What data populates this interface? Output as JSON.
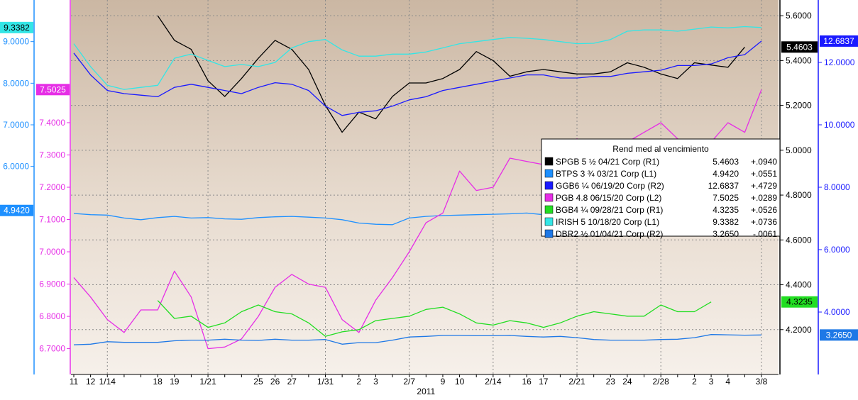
{
  "chart_data": {
    "type": "line",
    "x_year_label": "2011",
    "x_tick_labels": [
      "11",
      "12",
      "1/14",
      "18",
      "19",
      "1/21",
      "25",
      "26",
      "27",
      "1/31",
      "2",
      "3",
      "2/7",
      "9",
      "10",
      "2/14",
      "16",
      "17",
      "2/21",
      "23",
      "24",
      "2/28",
      "2",
      "3",
      "4",
      "3/8"
    ],
    "x_tick_index": [
      0,
      1,
      2,
      5,
      6,
      8,
      11,
      12,
      13,
      15,
      17,
      18,
      20,
      22,
      23,
      25,
      27,
      28,
      30,
      32,
      33,
      35,
      37,
      38,
      39,
      41
    ],
    "n_points": 42,
    "axes": {
      "L1": {
        "min": 1.0,
        "max": 10.0,
        "ticks": [
          6.0,
          7.0,
          8.0,
          9.0
        ],
        "labels": [
          "6.0000",
          "7.0000",
          "8.0000",
          "9.0000"
        ],
        "color": "#1e90ff"
      },
      "L2": {
        "min": 6.62,
        "max": 7.78,
        "ticks": [
          6.7,
          6.8,
          6.9,
          7.0,
          7.1,
          7.2,
          7.3,
          7.4
        ],
        "labels": [
          "6.7000",
          "6.8000",
          "6.9000",
          "7.0000",
          "7.1000",
          "7.2000",
          "7.3000",
          "7.4000"
        ],
        "color": "#e62ee6"
      },
      "R1": {
        "min": 4.0,
        "max": 5.67,
        "ticks": [
          4.2,
          4.4,
          4.6,
          4.8,
          5.0,
          5.2,
          5.4,
          5.6
        ],
        "labels": [
          "4.2000",
          "4.4000",
          "4.6000",
          "4.8000",
          "5.0000",
          "5.2000",
          "5.4000",
          "5.6000"
        ],
        "color": "#000000"
      },
      "R2": {
        "min": 2.0,
        "max": 14.0,
        "ticks": [
          4.0,
          6.0,
          8.0,
          10.0,
          12.0
        ],
        "labels": [
          "4.0000",
          "6.0000",
          "8.0000",
          "10.0000",
          "12.0000"
        ],
        "color": "#1a1aff"
      }
    },
    "series": [
      {
        "name": "SPGB 5 ½  04/21 Corp  (R1)",
        "axis": "R1",
        "color": "#000000",
        "last": "5.4603",
        "change": "+.0940",
        "start": 5,
        "values": [
          5.6,
          5.49,
          5.45,
          5.31,
          5.24,
          5.32,
          5.41,
          5.49,
          5.45,
          5.36,
          5.2,
          5.08,
          5.17,
          5.14,
          5.24,
          5.3,
          5.3,
          5.32,
          5.36,
          5.44,
          5.4,
          5.33,
          5.35,
          5.36,
          5.35,
          5.34,
          5.34,
          5.35,
          5.39,
          5.37,
          5.34,
          5.32,
          5.39,
          5.38,
          5.37,
          5.46
        ]
      },
      {
        "name": "BTPS 3 ¾  03/21 Corp  (L1)",
        "axis": "L1",
        "color": "#1e90ff",
        "last": "4.9420",
        "change": "+.0551",
        "start": 0,
        "values": [
          4.87,
          4.84,
          4.83,
          4.76,
          4.72,
          4.77,
          4.8,
          4.76,
          4.77,
          4.74,
          4.73,
          4.77,
          4.79,
          4.8,
          4.78,
          4.76,
          4.72,
          4.64,
          4.61,
          4.6,
          4.76,
          4.8,
          4.82,
          4.83,
          4.84,
          4.85,
          4.86,
          4.88,
          4.84,
          4.82,
          4.86,
          4.87,
          4.88,
          4.89,
          4.9,
          4.89,
          4.87,
          4.88,
          4.92,
          4.91,
          4.92,
          4.942
        ]
      },
      {
        "name": "GGB6 ¼  06/19/20 Corp  (R2) 12.6837",
        "axis": "R2",
        "color": "#1a1aff",
        "last": "12.6837",
        "change": "+.4729",
        "start": 0,
        "values": [
          12.3,
          11.6,
          11.1,
          11.0,
          10.95,
          10.9,
          11.2,
          11.3,
          11.2,
          11.1,
          11.0,
          11.2,
          11.35,
          11.3,
          11.1,
          10.6,
          10.3,
          10.4,
          10.45,
          10.6,
          10.8,
          10.9,
          11.1,
          11.2,
          11.3,
          11.4,
          11.5,
          11.6,
          11.6,
          11.5,
          11.5,
          11.55,
          11.55,
          11.65,
          11.7,
          11.75,
          11.9,
          11.9,
          11.95,
          12.15,
          12.25,
          12.6837
        ]
      },
      {
        "name": "PGB 4.8 06/15/20 Corp  (L2)",
        "axis": "L2",
        "color": "#e62ee6",
        "last": "7.5025",
        "change": "+.0289",
        "start": 0,
        "values": [
          6.92,
          6.86,
          6.79,
          6.75,
          6.82,
          6.82,
          6.94,
          6.86,
          6.7,
          6.705,
          6.73,
          6.8,
          6.89,
          6.93,
          6.9,
          6.89,
          6.79,
          6.75,
          6.85,
          6.92,
          7.0,
          7.09,
          7.12,
          7.25,
          7.19,
          7.2,
          7.29,
          7.28,
          7.27,
          7.32,
          7.35,
          7.33,
          7.325,
          7.34,
          7.37,
          7.4,
          7.35,
          7.32,
          7.34,
          7.4,
          7.37,
          7.5025
        ]
      },
      {
        "name": "BGB4 ¼  09/28/21 Corp  (R1)",
        "axis": "R1",
        "color": "#22dd22",
        "last": "4.3235",
        "change": "+.0526",
        "start": 5,
        "values": [
          4.33,
          4.25,
          4.26,
          4.21,
          4.23,
          4.28,
          4.31,
          4.28,
          4.27,
          4.23,
          4.17,
          4.19,
          4.2,
          4.24,
          4.25,
          4.26,
          4.29,
          4.3,
          4.27,
          4.23,
          4.22,
          4.24,
          4.23,
          4.21,
          4.23,
          4.26,
          4.28,
          4.27,
          4.26,
          4.26,
          4.31,
          4.28,
          4.28,
          4.3235
        ]
      },
      {
        "name": "IRISH 5 10/18/20 Corp  (L1)",
        "axis": "L1",
        "color": "#33e6e6",
        "last": "9.3382",
        "change": "+.0736",
        "start": 0,
        "values": [
          8.95,
          8.4,
          7.95,
          7.85,
          7.9,
          7.95,
          8.6,
          8.7,
          8.55,
          8.4,
          8.45,
          8.4,
          8.5,
          8.85,
          9.0,
          9.05,
          8.8,
          8.65,
          8.65,
          8.7,
          8.7,
          8.75,
          8.85,
          8.95,
          9.0,
          9.05,
          9.1,
          9.08,
          9.05,
          9.0,
          8.95,
          8.96,
          9.05,
          9.25,
          9.28,
          9.28,
          9.25,
          9.3,
          9.35,
          9.33,
          9.36,
          9.3382
        ]
      },
      {
        "name": "DBR2 ½  01/04/21 Corp  (R2)",
        "axis": "R2",
        "color": "#1e78e6",
        "last": "3.2650",
        "change": "-.0061",
        "start": 0,
        "values": [
          2.95,
          2.97,
          3.05,
          3.03,
          3.03,
          3.03,
          3.08,
          3.1,
          3.1,
          3.13,
          3.1,
          3.09,
          3.13,
          3.1,
          3.1,
          3.12,
          2.97,
          3.02,
          3.02,
          3.1,
          3.2,
          3.22,
          3.25,
          3.25,
          3.24,
          3.24,
          3.25,
          3.22,
          3.2,
          3.22,
          3.18,
          3.12,
          3.1,
          3.1,
          3.1,
          3.12,
          3.13,
          3.18,
          3.28,
          3.27,
          3.26,
          3.265
        ]
      }
    ],
    "legend": {
      "title": "Rend med al vencimiento",
      "placement": "right-middle",
      "rows": [
        {
          "name": "SPGB 5 ½  04/21 Corp  (R1)",
          "value": "5.4603",
          "change": "+.0940",
          "color": "#000000"
        },
        {
          "name": "BTPS 3 ¾  03/21 Corp  (L1)",
          "value": "4.9420",
          "change": "+.0551",
          "color": "#1e90ff"
        },
        {
          "name": "GGB6 ¼  06/19/20 Corp  (R2)",
          "value": "12.6837",
          "change": "+.4729",
          "color": "#1a1aff"
        },
        {
          "name": "PGB 4.8 06/15/20 Corp  (L2)",
          "value": "7.5025",
          "change": "+.0289",
          "color": "#e62ee6"
        },
        {
          "name": "BGB4 ¼  09/28/21 Corp  (R1)",
          "value": "4.3235",
          "change": "+.0526",
          "color": "#22dd22"
        },
        {
          "name": "IRISH 5 10/18/20 Corp  (L1)",
          "value": "9.3382",
          "change": "+.0736",
          "color": "#33e6e6"
        },
        {
          "name": "DBR2 ½  01/04/21 Corp  (R2)",
          "value": "3.2650",
          "change": "-.0061",
          "color": "#1e78e6"
        }
      ]
    },
    "badges": [
      {
        "text": "9.3382",
        "axis": "L1",
        "value": 9.3382,
        "side": "L1",
        "bg": "#33e6e6",
        "fg": "#000000"
      },
      {
        "text": "7.5025",
        "axis": "L2",
        "value": 7.5025,
        "side": "L2",
        "bg": "#e62ee6",
        "fg": "#ffffff"
      },
      {
        "text": "4.9420",
        "axis": "L1",
        "value": 4.942,
        "side": "L1",
        "bg": "#1e90ff",
        "fg": "#ffffff"
      },
      {
        "text": "5.4603",
        "axis": "R1",
        "value": 5.4603,
        "side": "R1",
        "bg": "#000000",
        "fg": "#ffffff"
      },
      {
        "text": "4.3235",
        "axis": "R1",
        "value": 4.3235,
        "side": "R1",
        "bg": "#22dd22",
        "fg": "#000000"
      },
      {
        "text": "12.6837",
        "axis": "R2",
        "value": 12.6837,
        "side": "R2",
        "bg": "#1a1aff",
        "fg": "#ffffff"
      },
      {
        "text": "3.2650",
        "axis": "R2",
        "value": 3.265,
        "side": "R2",
        "bg": "#1e78e6",
        "fg": "#ffffff"
      }
    ],
    "grid": true,
    "background_color": "#e8ddd0"
  }
}
